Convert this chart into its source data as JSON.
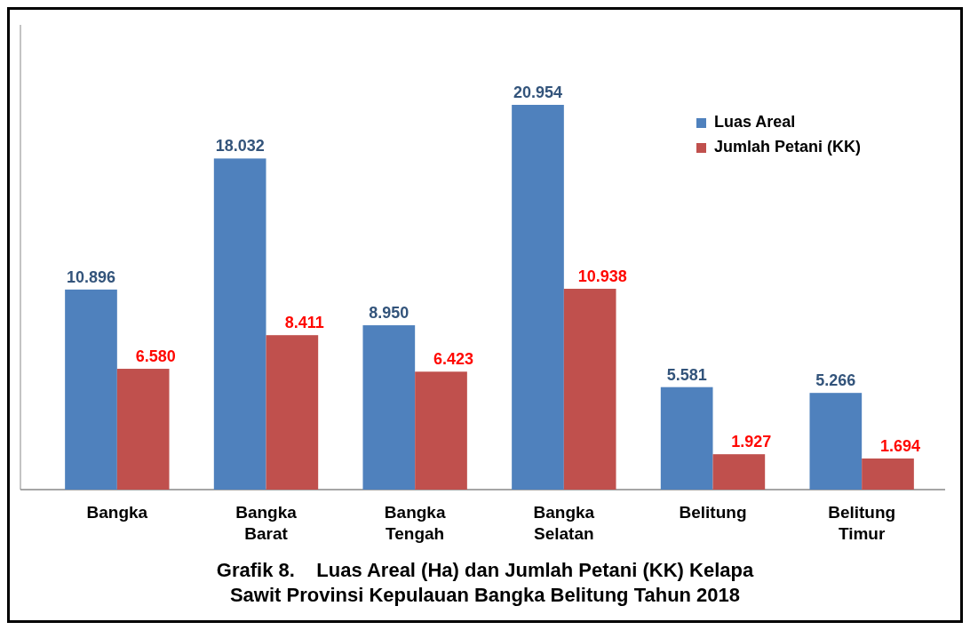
{
  "chart_data": {
    "type": "bar",
    "title": "Grafik 8.    Luas Areal (Ha) dan Jumlah Petani (KK) Kelapa Sawit Provinsi Kepulauan Bangka Belitung Tahun 2018",
    "categories": [
      "Bangka",
      "Bangka Barat",
      "Bangka Tengah",
      "Bangka Selatan",
      "Belitung",
      "Belitung Timur"
    ],
    "series": [
      {
        "name": "Luas Areal",
        "color": "#4f81bd",
        "values": [
          10896,
          18032,
          8950,
          20954,
          5581,
          5266
        ],
        "value_labels": [
          "10.896",
          "18.032",
          "8.950",
          "20.954",
          "5.581",
          "5.266"
        ]
      },
      {
        "name": "Jumlah Petani (KK)",
        "color": "#c0504d",
        "values": [
          6580,
          8411,
          6423,
          10938,
          1927,
          1694
        ],
        "value_labels": [
          "6.580",
          "8.411",
          "6.423",
          "10.938",
          "1.927",
          "1.694"
        ]
      }
    ],
    "legend": "top right"
  }
}
